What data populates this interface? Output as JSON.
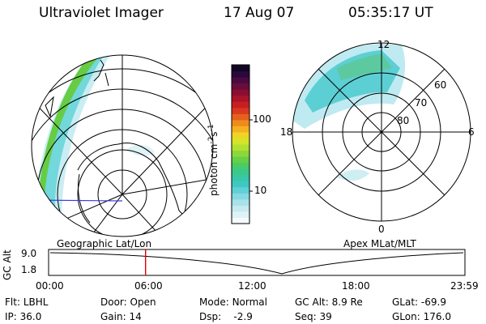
{
  "header": {
    "instrument": "Ultraviolet Imager",
    "date": "17 Aug 07",
    "time": "05:35:17 UT"
  },
  "colorbar": {
    "label": "photon cm",
    "label_exp1": "-2",
    "label_mid": "s",
    "label_exp2": "-1",
    "ticks": [
      "100",
      "10"
    ],
    "colors": [
      "#f4fbfc",
      "#dff2f6",
      "#c6eaf0",
      "#a8e2ea",
      "#86d9e2",
      "#5fd0d6",
      "#3ec8c4",
      "#38c8a8",
      "#3cc88a",
      "#48cc66",
      "#66d046",
      "#8cd83a",
      "#b2e030",
      "#d4e42a",
      "#f0d424",
      "#f4b020",
      "#ef8a1c",
      "#e5601c",
      "#d8381e",
      "#c81e22",
      "#aa1428",
      "#8a0e32",
      "#6a0c3a",
      "#4a0a40",
      "#2a083c",
      "#120626"
    ],
    "colors_note": "bottom to top"
  },
  "left_panel": {
    "label": "Geographic Lat/Lon"
  },
  "right_panel": {
    "label": "Apex MLat/MLT",
    "mlt_labels": {
      "top": "12",
      "left": "18",
      "right": "6",
      "bottom": "0"
    },
    "lat_labels": [
      "60",
      "70",
      "80"
    ]
  },
  "altitude_plot": {
    "ylabel": "GC Alt",
    "yticks": [
      "9.0",
      "1.8"
    ],
    "xticks": [
      "00:00",
      "06:00",
      "12:00",
      "18:00",
      "23:59"
    ],
    "marker_hour": 5.59,
    "marker_color": "#e00000"
  },
  "footer": {
    "row1": [
      {
        "label": "Flt:",
        "value": "LBHL"
      },
      {
        "label": "Door:",
        "value": "Open"
      },
      {
        "label": "Mode:",
        "value": "Normal"
      },
      {
        "label": "GC Alt:",
        "value": "8.9 Re"
      },
      {
        "label": "GLat:",
        "value": "-69.9"
      }
    ],
    "row2": [
      {
        "label": "IP:",
        "value": "36.0"
      },
      {
        "label": "Gain:",
        "value": "14"
      },
      {
        "label": "Dsp:",
        "value": "-2.9"
      },
      {
        "label": "Seq:",
        "value": "39"
      },
      {
        "label": "GLon:",
        "value": "176.0"
      }
    ]
  }
}
